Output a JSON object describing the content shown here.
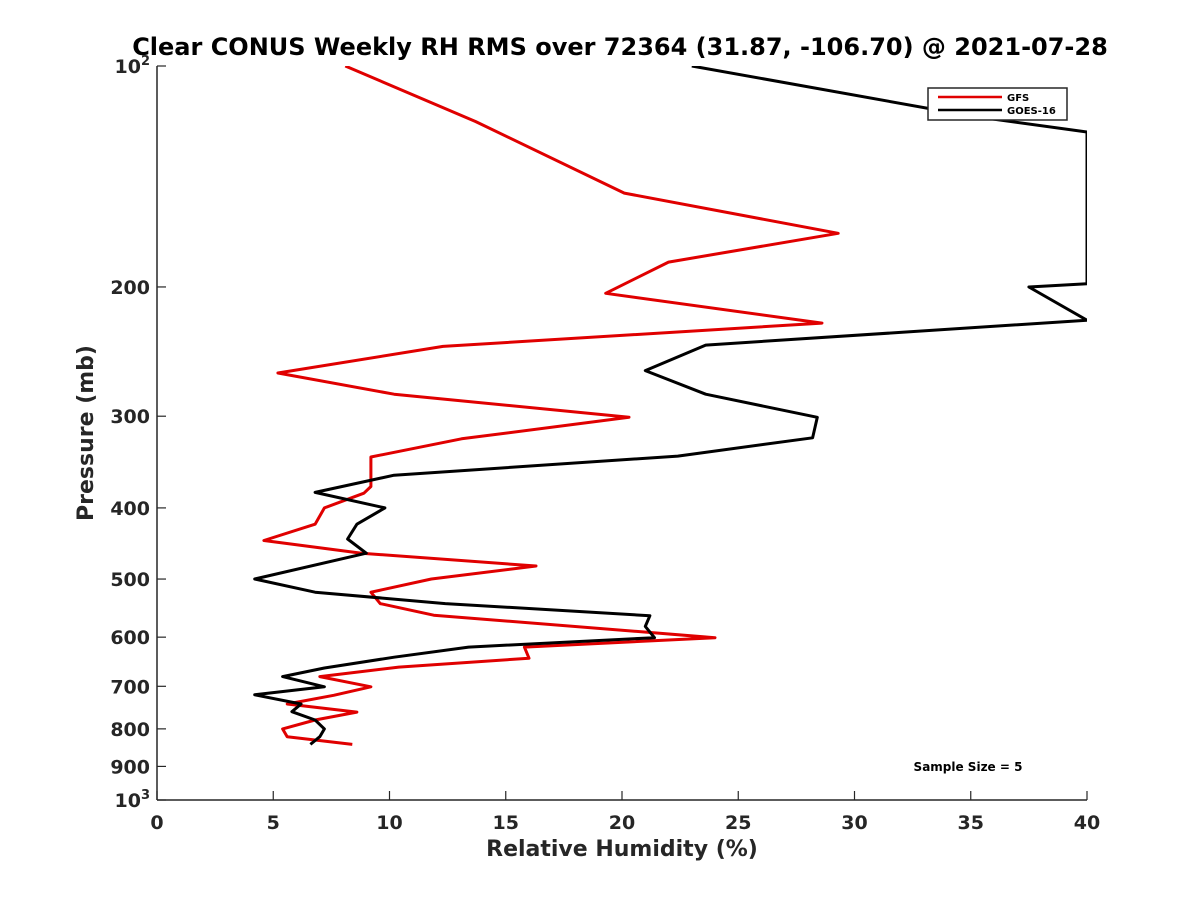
{
  "chart_data": {
    "type": "line",
    "title": "Clear CONUS Weekly RH RMS over 72364 (31.87, -106.70) @ 2021-07-28",
    "xlabel": "Relative Humidity (%)",
    "ylabel": "Pressure (mb)",
    "xlim": [
      0,
      40
    ],
    "ylim": [
      100,
      1000
    ],
    "y_scale": "log",
    "y_reversed": true,
    "grid": false,
    "legend_position": "top-right",
    "x_ticks": [
      "0",
      "5",
      "10",
      "15",
      "20",
      "25",
      "30",
      "35",
      "40"
    ],
    "y_ticks": [
      {
        "value": 100,
        "base": "10",
        "exp": "2"
      },
      {
        "value": 200,
        "label": "200"
      },
      {
        "value": 300,
        "label": "300"
      },
      {
        "value": 400,
        "label": "400"
      },
      {
        "value": 500,
        "label": "500"
      },
      {
        "value": 600,
        "label": "600"
      },
      {
        "value": 700,
        "label": "700"
      },
      {
        "value": 800,
        "label": "800"
      },
      {
        "value": 900,
        "label": "900"
      },
      {
        "value": 1000,
        "base": "10",
        "exp": "3"
      }
    ],
    "annotation": "Sample Size = 5",
    "series": [
      {
        "name": "GFS",
        "color": "#e00000",
        "points": [
          [
            8.1,
            100
          ],
          [
            13.7,
            119
          ],
          [
            20.1,
            149
          ],
          [
            29.3,
            169
          ],
          [
            22.0,
            185
          ],
          [
            19.3,
            204
          ],
          [
            28.6,
            224
          ],
          [
            12.3,
            241
          ],
          [
            5.2,
            262
          ],
          [
            10.2,
            280
          ],
          [
            20.3,
            301
          ],
          [
            13.1,
            322
          ],
          [
            9.2,
            341
          ],
          [
            9.2,
            361
          ],
          [
            9.2,
            374
          ],
          [
            8.9,
            382
          ],
          [
            7.2,
            400
          ],
          [
            6.8,
            421
          ],
          [
            4.6,
            443
          ],
          [
            8.8,
            461
          ],
          [
            16.3,
            480
          ],
          [
            11.8,
            500
          ],
          [
            9.2,
            521
          ],
          [
            9.6,
            540
          ],
          [
            11.9,
            560
          ],
          [
            24.0,
            601
          ],
          [
            15.8,
            619
          ],
          [
            16.0,
            641
          ],
          [
            10.4,
            659
          ],
          [
            7.0,
            679
          ],
          [
            9.2,
            701
          ],
          [
            7.6,
            720
          ],
          [
            5.6,
            740
          ],
          [
            8.6,
            759
          ],
          [
            6.8,
            778
          ],
          [
            5.4,
            800
          ],
          [
            5.6,
            820
          ],
          [
            8.4,
            840
          ]
        ]
      },
      {
        "name": "GOES-16",
        "color": "#000000",
        "points": [
          [
            23.0,
            100
          ],
          [
            35.0,
            117
          ],
          [
            40.0,
            123
          ],
          [
            40.0,
            198
          ],
          [
            37.5,
            200
          ],
          [
            40.0,
            222
          ],
          [
            23.6,
            240
          ],
          [
            21.0,
            260
          ],
          [
            23.6,
            280
          ],
          [
            28.4,
            301
          ],
          [
            28.2,
            321
          ],
          [
            22.4,
            340
          ],
          [
            10.2,
            361
          ],
          [
            6.8,
            381
          ],
          [
            9.8,
            400
          ],
          [
            8.6,
            421
          ],
          [
            8.2,
            441
          ],
          [
            9.0,
            461
          ],
          [
            4.2,
            500
          ],
          [
            6.8,
            521
          ],
          [
            12.4,
            540
          ],
          [
            21.2,
            561
          ],
          [
            21.0,
            580
          ],
          [
            21.4,
            601
          ],
          [
            13.4,
            619
          ],
          [
            10.2,
            639
          ],
          [
            7.2,
            661
          ],
          [
            5.4,
            679
          ],
          [
            7.2,
            701
          ],
          [
            4.2,
            719
          ],
          [
            6.2,
            740
          ],
          [
            5.8,
            758
          ],
          [
            6.8,
            778
          ],
          [
            7.2,
            800
          ],
          [
            7.0,
            820
          ],
          [
            6.6,
            840
          ]
        ]
      }
    ]
  }
}
